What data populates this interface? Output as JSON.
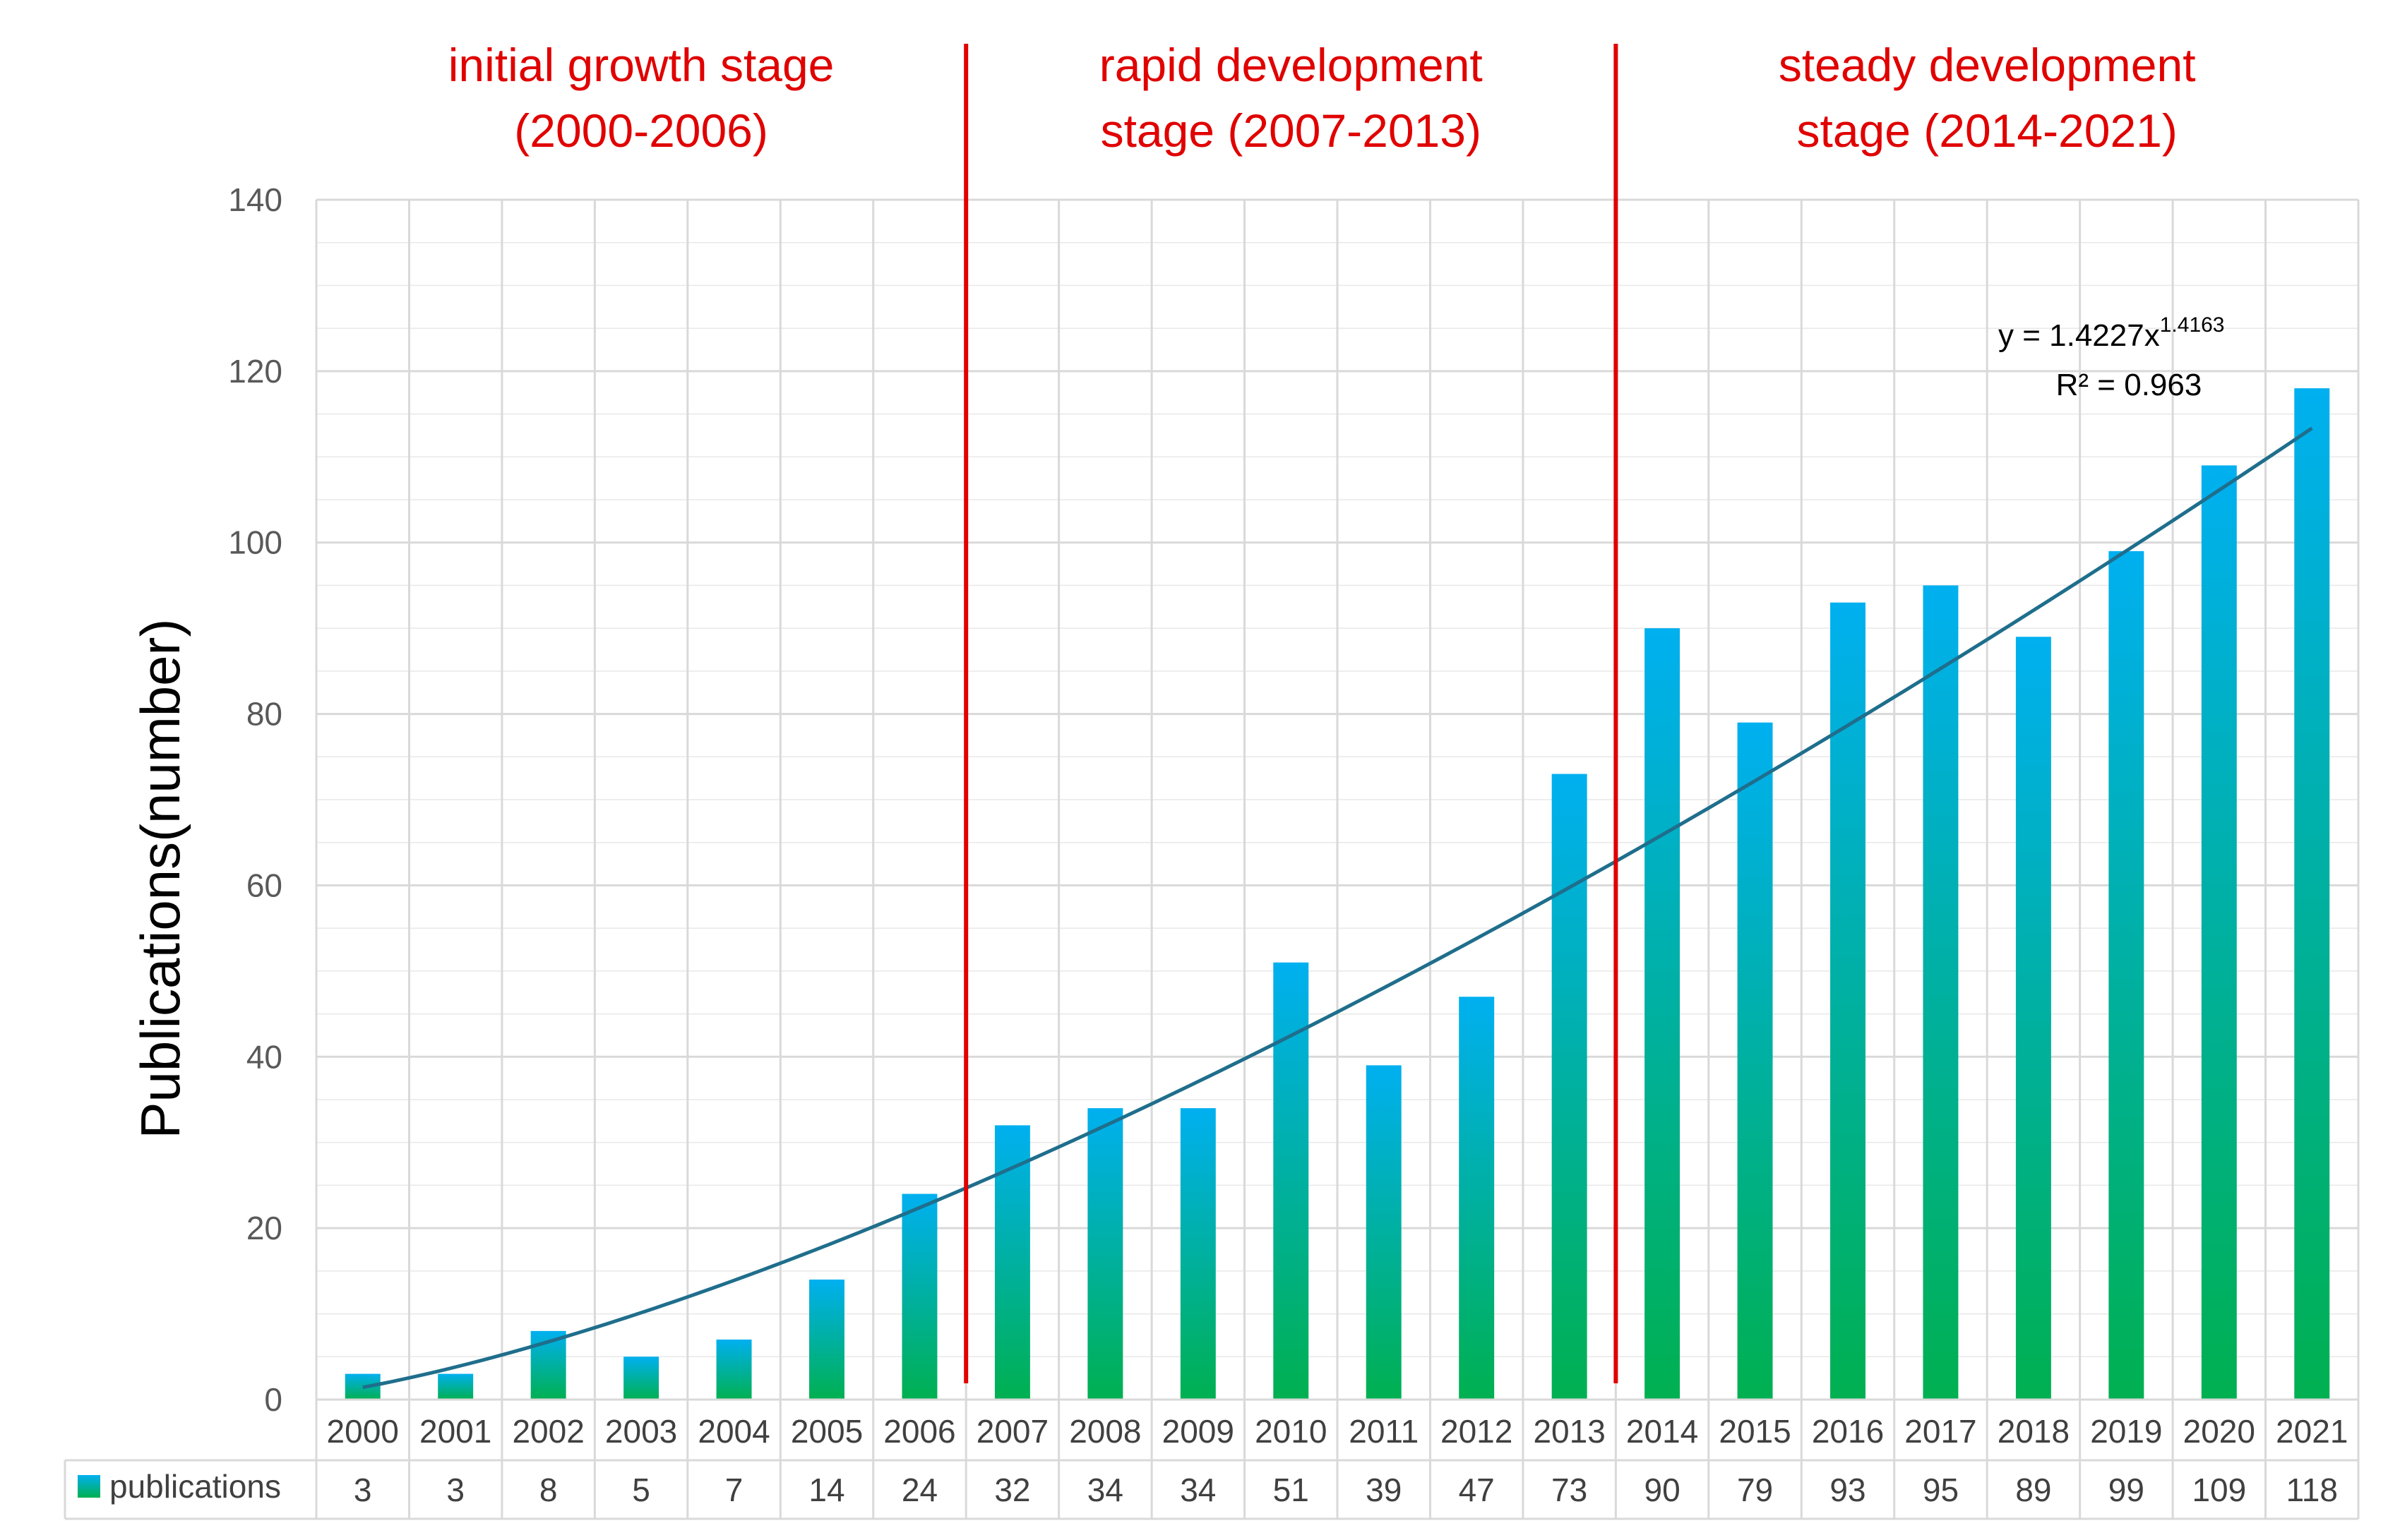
{
  "chart_data": {
    "type": "bar",
    "title": "",
    "xlabel": "",
    "ylabel": "Publications(number)",
    "ylim": [
      0,
      140
    ],
    "yticks": [
      0,
      20,
      40,
      60,
      80,
      100,
      120,
      140
    ],
    "grid": true,
    "categories": [
      "2000",
      "2001",
      "2002",
      "2003",
      "2004",
      "2005",
      "2006",
      "2007",
      "2008",
      "2009",
      "2010",
      "2011",
      "2012",
      "2013",
      "2014",
      "2015",
      "2016",
      "2017",
      "2018",
      "2019",
      "2020",
      "2021"
    ],
    "series": [
      {
        "name": "publications",
        "values": [
          3,
          3,
          8,
          5,
          7,
          14,
          24,
          32,
          34,
          34,
          51,
          39,
          47,
          73,
          90,
          79,
          93,
          95,
          89,
          99,
          109,
          118
        ]
      }
    ],
    "trendline": {
      "type": "power",
      "a": 1.4227,
      "b": 1.4163,
      "equation_prefix": "y = 1.4227x",
      "equation_exponent": "1.4163",
      "r_squared_label": "R² = 0.963"
    },
    "stages": [
      {
        "line1": "initial growth stage",
        "line2": "(2000-2006)",
        "start_index": 0,
        "end_index": 6
      },
      {
        "line1": "rapid development",
        "line2": "stage (2007-2013)",
        "start_index": 7,
        "end_index": 13
      },
      {
        "line1": "steady development",
        "line2": "stage (2014-2021)",
        "start_index": 14,
        "end_index": 21
      }
    ],
    "data_table": true,
    "colors": {
      "bar_top": "#00B0F0",
      "bar_bottom": "#00B050",
      "trendline": "#1F6E8C",
      "stage_line": "#E00000",
      "stage_text": "#E00000",
      "grid": "#D9D9D9",
      "axis_text": "#595959",
      "table_text": "#404040"
    }
  }
}
